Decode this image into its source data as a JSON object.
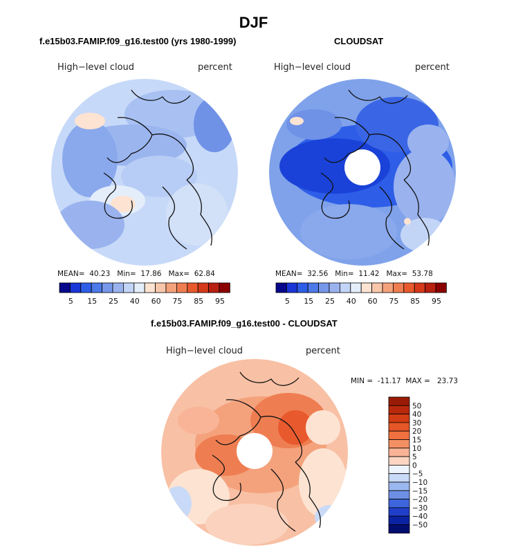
{
  "figure": {
    "title": "DJF"
  },
  "chart_data": [
    {
      "type": "heatmap",
      "projection": "north polar stereographic",
      "title": "f.e15b03.FAMIP.f09_g16.test00 (yrs 1980-1999)",
      "left_label": "High−level cloud",
      "right_label": "percent",
      "stats": {
        "mean_label": "MEAN=",
        "mean": "40.23",
        "min_label": "Min=",
        "min": "17.86",
        "max_label": "Max=",
        "max": "62.84"
      },
      "colorbar_labels": [
        "5",
        "15",
        "25",
        "40",
        "60",
        "75",
        "85",
        "95"
      ],
      "colorbar_colors": [
        "#08088a",
        "#1a36d6",
        "#2e5ee8",
        "#4d7ae8",
        "#7797ea",
        "#9ab3ef",
        "#c3d5f7",
        "#e4eefb",
        "#fde3d2",
        "#f8c7ab",
        "#f4a27c",
        "#ee7e52",
        "#e85a2e",
        "#d43a1a",
        "#b82010",
        "#8b0000"
      ],
      "background_color": "#c7d9f8",
      "cap_hole": false
    },
    {
      "type": "heatmap",
      "projection": "north polar stereographic",
      "title": "CLOUDSAT",
      "left_label": "High−level cloud",
      "right_label": "percent",
      "stats": {
        "mean_label": "MEAN=",
        "mean": "32.56",
        "min_label": "Min=",
        "min": "11.42",
        "max_label": "Max=",
        "max": "53.78"
      },
      "colorbar_labels": [
        "5",
        "15",
        "25",
        "40",
        "60",
        "75",
        "85",
        "95"
      ],
      "colorbar_colors": [
        "#08088a",
        "#1a36d6",
        "#2e5ee8",
        "#4d7ae8",
        "#7797ea",
        "#9ab3ef",
        "#c3d5f7",
        "#e4eefb",
        "#fde3d2",
        "#f8c7ab",
        "#f4a27c",
        "#ee7e52",
        "#e85a2e",
        "#d43a1a",
        "#b82010",
        "#8b0000"
      ],
      "background_color": "#7fa2ea",
      "cap_hole": true
    },
    {
      "type": "heatmap",
      "projection": "north polar stereographic",
      "title": "f.e15b03.FAMIP.f09_g16.test00 - CLOUDSAT",
      "left_label": "High−level cloud",
      "right_label": "percent",
      "stats": {
        "min_label": "MIN =",
        "min": "-11.17",
        "max_label": "MAX =",
        "max": "23.73"
      },
      "colorbar_labels": [
        "50",
        "40",
        "30",
        "20",
        "15",
        "10",
        "5",
        "0",
        "−5",
        "−10",
        "−15",
        "−20",
        "−30",
        "−40",
        "−50"
      ],
      "colorbar_colors": [
        "#9a1b05",
        "#b8290c",
        "#d23d14",
        "#e65626",
        "#f07040",
        "#f48f64",
        "#f9b396",
        "#fdd5c2",
        "#eef4fd",
        "#c8daf7",
        "#9bb7ef",
        "#6d90e6",
        "#3e66dc",
        "#1f3fc9",
        "#0b22a3",
        "#020d70"
      ],
      "background_color": "#f8c0a4",
      "cap_hole": true
    }
  ]
}
